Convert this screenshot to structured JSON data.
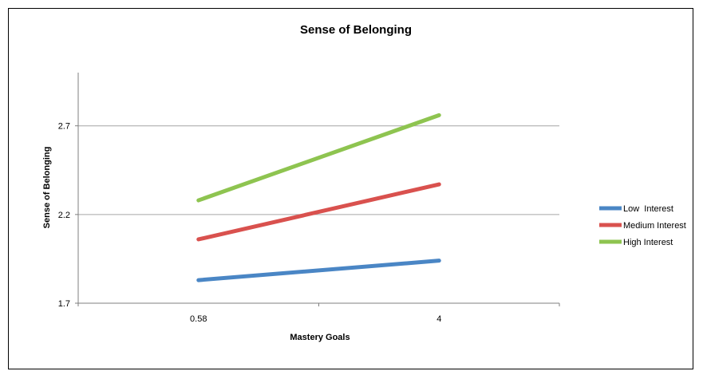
{
  "chart_data": {
    "type": "line",
    "title": "Sense of Belonging",
    "xlabel": "Mastery Goals",
    "ylabel": "Sense of Belonging",
    "categories": [
      "0.58",
      "4"
    ],
    "yticks": [
      "1.7",
      "2.2",
      "2.7"
    ],
    "ylim": [
      1.7,
      3.0
    ],
    "grid": true,
    "legend_position": "right",
    "series": [
      {
        "name": "Low  Interest",
        "values": [
          1.83,
          1.94
        ],
        "color": "#4a86c5"
      },
      {
        "name": "Medium Interest",
        "values": [
          2.06,
          2.37
        ],
        "color": "#d9514e"
      },
      {
        "name": "High Interest",
        "values": [
          2.28,
          2.76
        ],
        "color": "#8ec450"
      }
    ]
  }
}
